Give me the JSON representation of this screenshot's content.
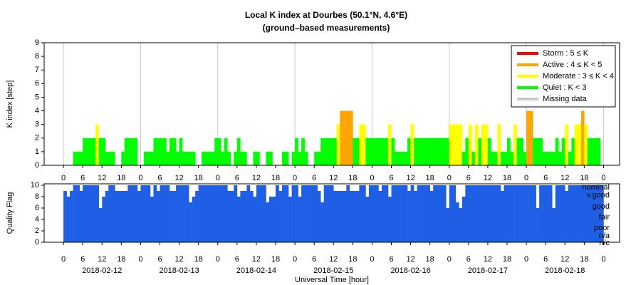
{
  "chart_data": [
    {
      "type": "bar",
      "title": "Local K index at Dourbes (50.1°N, 4.6°E)",
      "subtitle": "(ground–based measurements)",
      "y_label": "K index [step]",
      "xlim": [
        -6,
        173
      ],
      "ylim": [
        0,
        9
      ],
      "yticks": [
        0,
        1,
        2,
        3,
        4,
        5,
        6,
        7,
        8,
        9
      ],
      "grid": true,
      "legend_position": "upper right",
      "legend": [
        {
          "name": "Storm : 5 ≤ K",
          "color": "#ff0000",
          "min": 5
        },
        {
          "name": "Active : 4 ≤ K < 5",
          "color": "#ffa500",
          "min": 4
        },
        {
          "name": "Moderate : 3 ≤ K < 4",
          "color": "#ffff00",
          "min": 3
        },
        {
          "name": "Quiet : K < 3",
          "color": "#00ff00"
        },
        {
          "name": "Missing data",
          "color": "#c8c8c8"
        }
      ],
      "xticks": [
        0,
        {
          "value": 6,
          "label": "6"
        },
        {
          "value": 12,
          "label": "12"
        },
        {
          "value": 18,
          "label": "18"
        },
        {
          "value": 24,
          "label": "0"
        },
        {
          "value": 30,
          "label": "6"
        },
        {
          "value": 36,
          "label": "12"
        },
        {
          "value": 42,
          "label": "18"
        },
        {
          "value": 48,
          "label": "0"
        },
        {
          "value": 54,
          "label": "6"
        },
        {
          "value": 60,
          "label": "12"
        },
        {
          "value": 66,
          "label": "18"
        },
        {
          "value": 72,
          "label": "0"
        },
        {
          "value": 78,
          "label": "6"
        },
        {
          "value": 84,
          "label": "12"
        },
        {
          "value": 90,
          "label": "18"
        },
        {
          "value": 96,
          "label": "0"
        },
        {
          "value": 102,
          "label": "6"
        },
        {
          "value": 108,
          "label": "12"
        },
        {
          "value": 114,
          "label": "18"
        },
        {
          "value": 120,
          "label": "0"
        },
        {
          "value": 126,
          "label": "6"
        },
        {
          "value": 132,
          "label": "12"
        },
        {
          "value": 138,
          "label": "18"
        },
        {
          "value": 144,
          "label": "0"
        },
        {
          "value": 150,
          "label": "6"
        },
        {
          "value": 156,
          "label": "12"
        },
        {
          "value": 162,
          "label": "18"
        },
        {
          "value": 168,
          "label": "0"
        }
      ],
      "values": [
        0,
        0,
        0,
        1,
        1,
        1,
        2,
        2,
        2,
        2,
        3,
        2,
        2,
        1,
        1,
        1,
        0,
        0,
        1,
        2,
        2,
        2,
        2,
        0,
        0,
        1,
        1,
        1,
        2,
        2,
        2,
        2,
        1,
        2,
        2,
        1,
        2,
        1,
        1,
        1,
        1,
        0,
        0,
        1,
        1,
        1,
        1,
        2,
        2,
        1,
        2,
        1,
        0,
        1,
        2,
        1,
        1,
        0,
        0,
        1,
        1,
        0,
        0,
        1,
        1,
        0,
        0,
        0,
        1,
        1,
        0,
        1,
        2,
        1,
        2,
        1,
        0,
        0,
        1,
        1,
        2,
        2,
        2,
        2,
        2,
        3,
        4,
        4,
        4,
        4,
        2,
        2,
        3,
        3,
        2,
        2,
        2,
        2,
        2,
        2,
        2,
        3,
        2,
        1,
        1,
        1,
        1,
        2,
        3,
        2,
        2,
        2,
        2,
        2,
        2,
        2,
        2,
        2,
        2,
        2,
        3,
        3,
        3,
        3,
        1,
        2,
        3,
        1,
        3,
        2,
        3,
        3,
        2,
        1,
        1,
        3,
        1,
        1,
        2,
        1,
        3,
        2,
        2,
        1,
        4,
        4,
        2,
        2,
        2,
        1,
        1,
        1,
        1,
        2,
        1,
        2,
        3,
        1,
        2,
        3,
        3,
        4,
        3,
        2,
        2,
        2,
        2,
        0
      ]
    },
    {
      "type": "bar",
      "y_label": "Quality Flag",
      "x_label": "Universal Time [hour]",
      "color": "#1f5fe6",
      "xlim": [
        -6,
        173
      ],
      "ylim": [
        0,
        10.25
      ],
      "yticks": [
        0,
        2,
        4,
        6,
        8,
        10
      ],
      "levels": [
        "nominal",
        "v.good",
        "good",
        "fair",
        "poor",
        "n/a",
        "n/c"
      ],
      "xticks": [
        0,
        {
          "value": 6,
          "label": "6"
        },
        {
          "value": 12,
          "label": "12"
        },
        {
          "value": 18,
          "label": "18"
        },
        {
          "value": 24,
          "label": "0"
        },
        {
          "value": 30,
          "label": "6"
        },
        {
          "value": 36,
          "label": "12"
        },
        {
          "value": 42,
          "label": "18"
        },
        {
          "value": 48,
          "label": "0"
        },
        {
          "value": 54,
          "label": "6"
        },
        {
          "value": 60,
          "label": "12"
        },
        {
          "value": 66,
          "label": "18"
        },
        {
          "value": 72,
          "label": "0"
        },
        {
          "value": 78,
          "label": "6"
        },
        {
          "value": 84,
          "label": "12"
        },
        {
          "value": 90,
          "label": "18"
        },
        {
          "value": 96,
          "label": "0"
        },
        {
          "value": 102,
          "label": "6"
        },
        {
          "value": 108,
          "label": "12"
        },
        {
          "value": 114,
          "label": "18"
        },
        {
          "value": 120,
          "label": "0"
        },
        {
          "value": 126,
          "label": "6"
        },
        {
          "value": 132,
          "label": "12"
        },
        {
          "value": 138,
          "label": "18"
        },
        {
          "value": 144,
          "label": "0"
        },
        {
          "value": 150,
          "label": "6"
        },
        {
          "value": 156,
          "label": "12"
        },
        {
          "value": 162,
          "label": "18"
        },
        {
          "value": 168,
          "label": "0"
        }
      ],
      "date_labels": [
        {
          "value": 12,
          "label": "2018-02-12"
        },
        {
          "value": 36,
          "label": "2018-02-13"
        },
        {
          "value": 60,
          "label": "2018-02-14"
        },
        {
          "value": 84,
          "label": "2018-02-15"
        },
        {
          "value": 108,
          "label": "2018-02-16"
        },
        {
          "value": 132,
          "label": "2018-02-17"
        },
        {
          "value": 156,
          "label": "2018-02-18"
        }
      ],
      "values": [
        9,
        8,
        9,
        10,
        10,
        9,
        10,
        10,
        10,
        10,
        10,
        6,
        8,
        9,
        10,
        10,
        9,
        9,
        9,
        9,
        10,
        10,
        10,
        9,
        10,
        10,
        10,
        8,
        10,
        9,
        10,
        10,
        10,
        9,
        9,
        10,
        10,
        10,
        10,
        7,
        8,
        9,
        10,
        10,
        10,
        10,
        10,
        10,
        10,
        10,
        10,
        9,
        9,
        10,
        8,
        9,
        9,
        10,
        9,
        8,
        10,
        10,
        10,
        7,
        8,
        8,
        10,
        9,
        10,
        10,
        8,
        10,
        10,
        8,
        10,
        10,
        10,
        10,
        10,
        9,
        7,
        10,
        10,
        10,
        9,
        9,
        9,
        9,
        10,
        9,
        9,
        9,
        10,
        10,
        8,
        10,
        10,
        10,
        9,
        10,
        10,
        8,
        10,
        10,
        10,
        10,
        10,
        9,
        10,
        9,
        10,
        10,
        10,
        10,
        9,
        10,
        10,
        10,
        10,
        6,
        10,
        10,
        7,
        6,
        8,
        10,
        10,
        10,
        10,
        10,
        10,
        10,
        10,
        10,
        10,
        10,
        9,
        10,
        10,
        10,
        10,
        10,
        10,
        10,
        10,
        10,
        10,
        6,
        10,
        10,
        10,
        10,
        6,
        10,
        10,
        10,
        9,
        10,
        10,
        10,
        10,
        10,
        10,
        10,
        10,
        10,
        10,
        10
      ]
    }
  ]
}
